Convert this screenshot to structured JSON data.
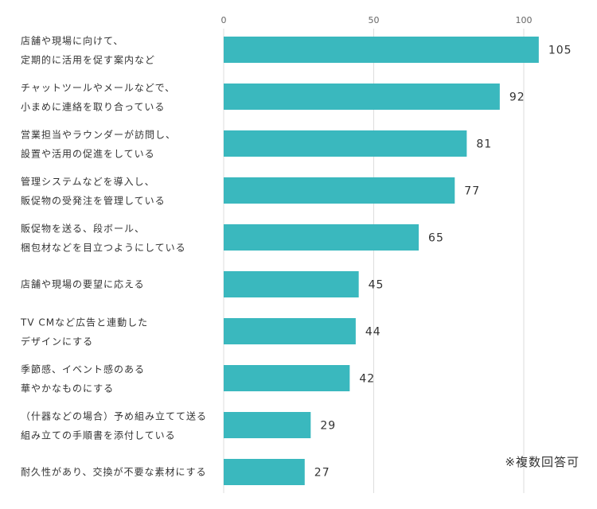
{
  "chart_data": {
    "type": "bar",
    "orientation": "horizontal",
    "categories": [
      [
        "店舗や現場に向けて、",
        "定期的に活用を促す案内など"
      ],
      [
        "チャットツールやメールなどで、",
        "小まめに連絡を取り合っている"
      ],
      [
        "営業担当やラウンダーが訪問し、",
        "設置や活用の促進をしている"
      ],
      [
        "管理システムなどを導入し、",
        "販促物の受発注を管理している"
      ],
      [
        "販促物を送る、段ボール、",
        "梱包材などを目立つようにしている"
      ],
      [
        "店舗や現場の要望に応える"
      ],
      [
        "TV CMなど広告と連動した",
        "デザインにする"
      ],
      [
        "季節感、イベント感のある",
        "華やかなものにする"
      ],
      [
        "（什器などの場合）予め組み立てて送る",
        "組み立ての手順書を添付している"
      ],
      [
        "耐久性があり、交換が不要な素材にする"
      ]
    ],
    "values": [
      105,
      92,
      81,
      77,
      65,
      45,
      44,
      42,
      29,
      27
    ],
    "xlim": [
      0,
      120
    ],
    "ticks": [
      0,
      50,
      100
    ],
    "tick_labels": [
      "0",
      "50",
      "100"
    ],
    "grid": true,
    "bar_color": "#3ab8be",
    "grid_color": "#dddddd"
  },
  "note": "※複数回答可"
}
